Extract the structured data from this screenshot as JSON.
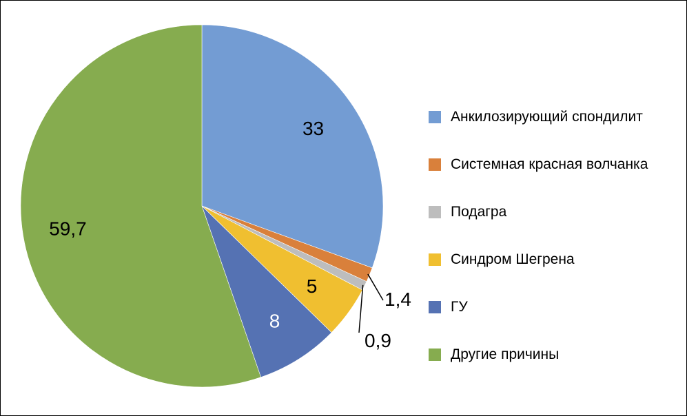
{
  "chart_data": {
    "type": "pie",
    "categories": [
      "Анкилозирующий спондилит",
      "Системная красная волчанка",
      "Подагра",
      "Синдром Шегрена",
      "ГУ",
      "Другие причины"
    ],
    "values": [
      33,
      1.4,
      0.9,
      5,
      8,
      59.7
    ],
    "labels": [
      "33",
      "1,4",
      "0,9",
      "5",
      "8",
      "59,7"
    ],
    "colors": [
      "#739CD3",
      "#D9803B",
      "#BDBDBD",
      "#F0BF30",
      "#5572B3",
      "#86AC4F"
    ],
    "label_colors": [
      "#000000",
      "#000000",
      "#000000",
      "#000000",
      "#ffffff",
      "#000000"
    ],
    "legend_position": "right",
    "title": ""
  }
}
